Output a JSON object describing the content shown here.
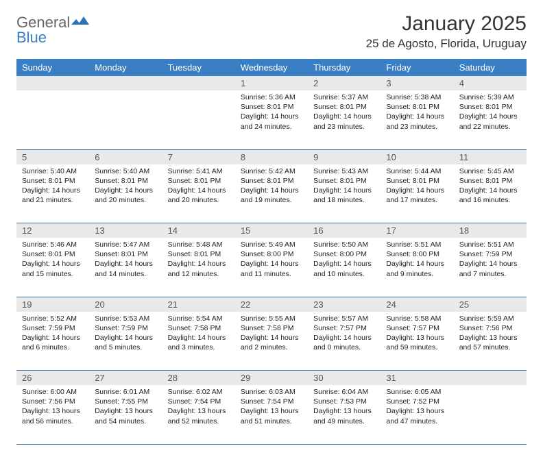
{
  "logo": {
    "word1": "General",
    "word2": "Blue"
  },
  "header": {
    "month_title": "January 2025",
    "location": "25 de Agosto, Florida, Uruguay"
  },
  "palette": {
    "header_blue": "#3a7fc4",
    "row_grey": "#e9e9e9",
    "rule_blue": "#3a6fa8",
    "text": "#222222",
    "logo_grey": "#666666"
  },
  "weekdays": [
    "Sunday",
    "Monday",
    "Tuesday",
    "Wednesday",
    "Thursday",
    "Friday",
    "Saturday"
  ],
  "weeks": [
    [
      null,
      null,
      null,
      {
        "n": "1",
        "sr": "Sunrise: 5:36 AM",
        "ss": "Sunset: 8:01 PM",
        "dl": "Daylight: 14 hours and 24 minutes."
      },
      {
        "n": "2",
        "sr": "Sunrise: 5:37 AM",
        "ss": "Sunset: 8:01 PM",
        "dl": "Daylight: 14 hours and 23 minutes."
      },
      {
        "n": "3",
        "sr": "Sunrise: 5:38 AM",
        "ss": "Sunset: 8:01 PM",
        "dl": "Daylight: 14 hours and 23 minutes."
      },
      {
        "n": "4",
        "sr": "Sunrise: 5:39 AM",
        "ss": "Sunset: 8:01 PM",
        "dl": "Daylight: 14 hours and 22 minutes."
      }
    ],
    [
      {
        "n": "5",
        "sr": "Sunrise: 5:40 AM",
        "ss": "Sunset: 8:01 PM",
        "dl": "Daylight: 14 hours and 21 minutes."
      },
      {
        "n": "6",
        "sr": "Sunrise: 5:40 AM",
        "ss": "Sunset: 8:01 PM",
        "dl": "Daylight: 14 hours and 20 minutes."
      },
      {
        "n": "7",
        "sr": "Sunrise: 5:41 AM",
        "ss": "Sunset: 8:01 PM",
        "dl": "Daylight: 14 hours and 20 minutes."
      },
      {
        "n": "8",
        "sr": "Sunrise: 5:42 AM",
        "ss": "Sunset: 8:01 PM",
        "dl": "Daylight: 14 hours and 19 minutes."
      },
      {
        "n": "9",
        "sr": "Sunrise: 5:43 AM",
        "ss": "Sunset: 8:01 PM",
        "dl": "Daylight: 14 hours and 18 minutes."
      },
      {
        "n": "10",
        "sr": "Sunrise: 5:44 AM",
        "ss": "Sunset: 8:01 PM",
        "dl": "Daylight: 14 hours and 17 minutes."
      },
      {
        "n": "11",
        "sr": "Sunrise: 5:45 AM",
        "ss": "Sunset: 8:01 PM",
        "dl": "Daylight: 14 hours and 16 minutes."
      }
    ],
    [
      {
        "n": "12",
        "sr": "Sunrise: 5:46 AM",
        "ss": "Sunset: 8:01 PM",
        "dl": "Daylight: 14 hours and 15 minutes."
      },
      {
        "n": "13",
        "sr": "Sunrise: 5:47 AM",
        "ss": "Sunset: 8:01 PM",
        "dl": "Daylight: 14 hours and 14 minutes."
      },
      {
        "n": "14",
        "sr": "Sunrise: 5:48 AM",
        "ss": "Sunset: 8:01 PM",
        "dl": "Daylight: 14 hours and 12 minutes."
      },
      {
        "n": "15",
        "sr": "Sunrise: 5:49 AM",
        "ss": "Sunset: 8:00 PM",
        "dl": "Daylight: 14 hours and 11 minutes."
      },
      {
        "n": "16",
        "sr": "Sunrise: 5:50 AM",
        "ss": "Sunset: 8:00 PM",
        "dl": "Daylight: 14 hours and 10 minutes."
      },
      {
        "n": "17",
        "sr": "Sunrise: 5:51 AM",
        "ss": "Sunset: 8:00 PM",
        "dl": "Daylight: 14 hours and 9 minutes."
      },
      {
        "n": "18",
        "sr": "Sunrise: 5:51 AM",
        "ss": "Sunset: 7:59 PM",
        "dl": "Daylight: 14 hours and 7 minutes."
      }
    ],
    [
      {
        "n": "19",
        "sr": "Sunrise: 5:52 AM",
        "ss": "Sunset: 7:59 PM",
        "dl": "Daylight: 14 hours and 6 minutes."
      },
      {
        "n": "20",
        "sr": "Sunrise: 5:53 AM",
        "ss": "Sunset: 7:59 PM",
        "dl": "Daylight: 14 hours and 5 minutes."
      },
      {
        "n": "21",
        "sr": "Sunrise: 5:54 AM",
        "ss": "Sunset: 7:58 PM",
        "dl": "Daylight: 14 hours and 3 minutes."
      },
      {
        "n": "22",
        "sr": "Sunrise: 5:55 AM",
        "ss": "Sunset: 7:58 PM",
        "dl": "Daylight: 14 hours and 2 minutes."
      },
      {
        "n": "23",
        "sr": "Sunrise: 5:57 AM",
        "ss": "Sunset: 7:57 PM",
        "dl": "Daylight: 14 hours and 0 minutes."
      },
      {
        "n": "24",
        "sr": "Sunrise: 5:58 AM",
        "ss": "Sunset: 7:57 PM",
        "dl": "Daylight: 13 hours and 59 minutes."
      },
      {
        "n": "25",
        "sr": "Sunrise: 5:59 AM",
        "ss": "Sunset: 7:56 PM",
        "dl": "Daylight: 13 hours and 57 minutes."
      }
    ],
    [
      {
        "n": "26",
        "sr": "Sunrise: 6:00 AM",
        "ss": "Sunset: 7:56 PM",
        "dl": "Daylight: 13 hours and 56 minutes."
      },
      {
        "n": "27",
        "sr": "Sunrise: 6:01 AM",
        "ss": "Sunset: 7:55 PM",
        "dl": "Daylight: 13 hours and 54 minutes."
      },
      {
        "n": "28",
        "sr": "Sunrise: 6:02 AM",
        "ss": "Sunset: 7:54 PM",
        "dl": "Daylight: 13 hours and 52 minutes."
      },
      {
        "n": "29",
        "sr": "Sunrise: 6:03 AM",
        "ss": "Sunset: 7:54 PM",
        "dl": "Daylight: 13 hours and 51 minutes."
      },
      {
        "n": "30",
        "sr": "Sunrise: 6:04 AM",
        "ss": "Sunset: 7:53 PM",
        "dl": "Daylight: 13 hours and 49 minutes."
      },
      {
        "n": "31",
        "sr": "Sunrise: 6:05 AM",
        "ss": "Sunset: 7:52 PM",
        "dl": "Daylight: 13 hours and 47 minutes."
      },
      null
    ]
  ]
}
